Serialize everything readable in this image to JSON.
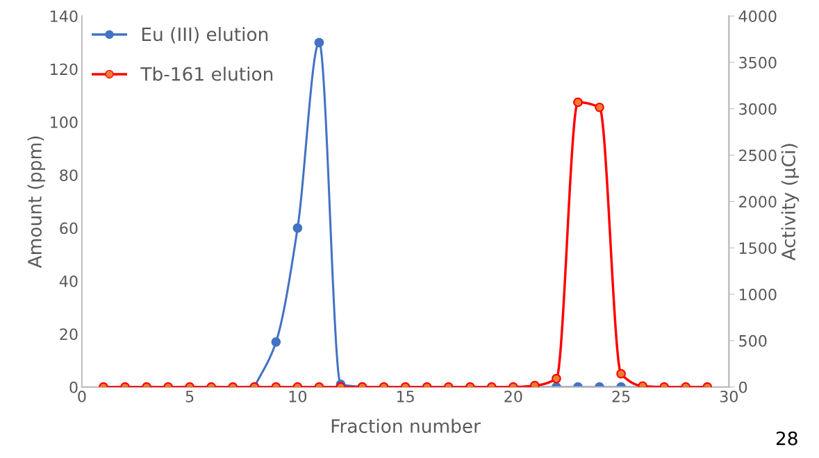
{
  "chart_data": {
    "type": "line",
    "xlabel": "Fraction number",
    "ylabel": "Amount (ppm)",
    "y2label": "Activity (µCi)",
    "x": [
      1,
      2,
      3,
      4,
      5,
      6,
      7,
      8,
      9,
      10,
      11,
      12,
      13,
      14,
      15,
      16,
      17,
      18,
      19,
      20,
      21,
      22,
      23,
      24,
      25,
      26,
      27,
      28,
      29
    ],
    "series": [
      {
        "name": "Eu (III) elution",
        "color": "#4472c4",
        "values": [
          null,
          null,
          null,
          null,
          null,
          null,
          null,
          0,
          17,
          60,
          130,
          1,
          0,
          null,
          null,
          null,
          null,
          null,
          null,
          null,
          0,
          0,
          0,
          0,
          0,
          0,
          null,
          null,
          null
        ]
      },
      {
        "name": "Tb-161 elution",
        "color": "#ff0000",
        "axis": "y2",
        "colors": [
          "#ed7d31",
          "#ed7d31",
          "#ed7d31",
          "#ed7d31",
          "#ed7d31",
          "#ed7d31",
          "#ed7d31",
          "#ed7d31",
          "#ed7d31",
          "#ed7d31",
          "#ed7d31",
          "#ed7d31",
          "#ed7d31",
          "#ed7d31",
          "#ed7d31",
          "#ed7d31",
          "#ed7d31",
          "#ed7d31",
          "#ed7d31",
          "#ed7d31",
          "#ed7d31",
          "#ed7d31",
          "#ed7d31",
          "#ed7d31",
          "#ed7d31",
          "#ed7d31",
          "#ed7d31",
          "#ed7d31",
          "#ed7d31"
        ],
        "values": [
          0,
          0,
          0,
          0,
          0,
          0,
          0,
          0,
          0,
          0,
          0,
          0,
          0,
          0,
          0,
          0,
          0,
          0,
          0,
          0,
          15,
          90,
          3070,
          3015,
          143,
          10,
          0,
          0,
          0
        ]
      }
    ],
    "xlim": [
      0,
      30
    ],
    "xticks": [
      0,
      5,
      10,
      15,
      20,
      25,
      30
    ],
    "ylim": [
      0,
      140
    ],
    "yticks": [
      0,
      20,
      40,
      60,
      80,
      100,
      120,
      140
    ],
    "y2lim": [
      0,
      4000
    ],
    "y2ticks": [
      0,
      500,
      1000,
      1500,
      2000,
      2500,
      3000,
      3500,
      4000
    ],
    "marker": "circle",
    "grid": false,
    "legend": "top left",
    "annotations": [
      "28"
    ]
  }
}
